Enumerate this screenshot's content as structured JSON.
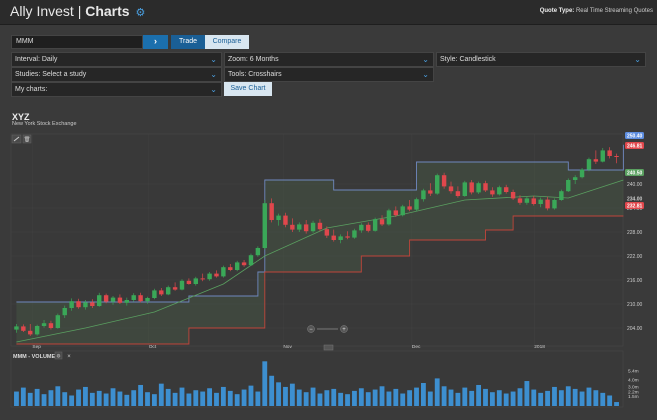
{
  "header": {
    "brand_name": "Ally Invest",
    "brand_section": "Charts",
    "quote_type_label": "Quote Type:",
    "quote_type_value": "Real Time Streaming Quotes"
  },
  "controls": {
    "symbol_value": "MMM",
    "go_label": "›",
    "trade_label": "Trade",
    "compare_label": "Compare",
    "interval": "Interval:  Daily",
    "zoom": "Zoom:  6 Months",
    "style": "Style:  Candlestick",
    "studies": "Studies:  Select a study",
    "tools": "Tools:  Crosshairs",
    "my_charts": "My charts:",
    "save_chart_label": "Save Chart"
  },
  "chart": {
    "title": "XYZ",
    "exchange": "New York Stock Exchange",
    "volume_label": "MMM - VOLUME",
    "colors": {
      "up": "#3aa858",
      "down": "#e0474c",
      "upper_band": "#6f88bf",
      "lower_band": "#c0453a",
      "mid_band": "#5aa060",
      "volume": "#3d8fd0"
    }
  },
  "chart_data": {
    "type": "candlestick",
    "xticks": [
      "Sep",
      "Oct",
      "Nov",
      "Dec",
      "2018"
    ],
    "yticks": [
      204.0,
      210.0,
      216.0,
      222.0,
      228.0,
      234.0,
      240.0
    ],
    "price_badges": [
      {
        "value": "250.40",
        "color": "#5d8de0"
      },
      {
        "value": "246.81",
        "color": "#e0474c"
      },
      {
        "value": "240.50",
        "color": "#5aa060"
      },
      {
        "value": "234.00",
        "color": ""
      },
      {
        "value": "232.81",
        "color": "#e0474c"
      }
    ],
    "ylim": [
      200,
      252
    ],
    "candles": [
      [
        203.6,
        205.0,
        202.8,
        204.4
      ],
      [
        204.4,
        204.9,
        203.0,
        203.3
      ],
      [
        203.3,
        205.0,
        202.0,
        202.4
      ],
      [
        202.4,
        204.8,
        202.1,
        204.5
      ],
      [
        204.5,
        206.0,
        204.1,
        205.2
      ],
      [
        205.2,
        205.8,
        203.6,
        204.0
      ],
      [
        204.0,
        207.6,
        203.8,
        207.2
      ],
      [
        207.2,
        209.6,
        206.5,
        209.0
      ],
      [
        209.0,
        211.4,
        208.3,
        210.7
      ],
      [
        210.7,
        211.3,
        208.8,
        209.2
      ],
      [
        209.2,
        211.0,
        208.6,
        210.4
      ],
      [
        210.4,
        211.2,
        209.0,
        209.5
      ],
      [
        209.5,
        212.8,
        209.3,
        212.2
      ],
      [
        212.2,
        212.6,
        210.2,
        210.6
      ],
      [
        210.6,
        212.0,
        209.8,
        211.6
      ],
      [
        211.6,
        212.4,
        210.0,
        210.3
      ],
      [
        210.3,
        211.6,
        209.6,
        211.0
      ],
      [
        211.0,
        212.7,
        210.6,
        212.2
      ],
      [
        212.2,
        212.8,
        210.4,
        210.7
      ],
      [
        210.7,
        211.8,
        210.1,
        211.5
      ],
      [
        211.5,
        213.8,
        211.2,
        213.4
      ],
      [
        213.4,
        214.0,
        212.0,
        212.4
      ],
      [
        212.4,
        214.6,
        212.2,
        214.2
      ],
      [
        214.2,
        215.4,
        213.3,
        213.6
      ],
      [
        213.6,
        216.2,
        213.4,
        215.8
      ],
      [
        215.8,
        216.4,
        214.8,
        215.0
      ],
      [
        215.0,
        216.8,
        214.6,
        216.4
      ],
      [
        216.4,
        217.6,
        215.7,
        216.2
      ],
      [
        216.2,
        218.0,
        215.8,
        217.6
      ],
      [
        217.6,
        218.4,
        216.6,
        216.9
      ],
      [
        216.9,
        219.6,
        216.6,
        219.2
      ],
      [
        219.2,
        220.0,
        218.2,
        218.5
      ],
      [
        218.5,
        220.8,
        218.2,
        220.4
      ],
      [
        220.4,
        221.0,
        219.3,
        219.7
      ],
      [
        219.7,
        222.6,
        219.5,
        222.2
      ],
      [
        222.2,
        224.4,
        221.8,
        224.0
      ],
      [
        224.0,
        236.0,
        223.6,
        235.2
      ],
      [
        235.2,
        236.4,
        230.4,
        231.0
      ],
      [
        231.0,
        232.6,
        229.6,
        232.1
      ],
      [
        232.1,
        232.8,
        229.2,
        229.8
      ],
      [
        229.8,
        231.4,
        228.0,
        228.6
      ],
      [
        228.6,
        230.4,
        228.0,
        229.9
      ],
      [
        229.9,
        231.0,
        227.6,
        228.2
      ],
      [
        228.2,
        230.8,
        227.8,
        230.3
      ],
      [
        230.3,
        231.2,
        228.2,
        228.7
      ],
      [
        228.7,
        229.4,
        226.5,
        227.1
      ],
      [
        227.1,
        228.6,
        225.6,
        226.0
      ],
      [
        226.0,
        227.4,
        225.2,
        226.9
      ],
      [
        226.9,
        228.2,
        226.2,
        226.6
      ],
      [
        226.6,
        228.8,
        226.3,
        228.4
      ],
      [
        228.4,
        230.2,
        227.8,
        229.8
      ],
      [
        229.8,
        230.4,
        227.9,
        228.3
      ],
      [
        228.3,
        231.6,
        228.1,
        231.2
      ],
      [
        231.2,
        232.2,
        229.5,
        229.9
      ],
      [
        229.9,
        233.8,
        229.6,
        233.4
      ],
      [
        233.4,
        234.4,
        231.8,
        232.2
      ],
      [
        232.2,
        234.8,
        231.9,
        234.4
      ],
      [
        234.4,
        236.0,
        233.2,
        233.6
      ],
      [
        233.6,
        236.6,
        233.2,
        236.2
      ],
      [
        236.2,
        238.8,
        235.6,
        238.4
      ],
      [
        238.4,
        240.2,
        237.0,
        237.6
      ],
      [
        237.6,
        242.6,
        237.3,
        242.2
      ],
      [
        242.2,
        242.8,
        238.8,
        239.4
      ],
      [
        239.4,
        240.6,
        237.6,
        238.2
      ],
      [
        238.2,
        239.4,
        236.6,
        237.0
      ],
      [
        237.0,
        240.8,
        236.8,
        240.4
      ],
      [
        240.4,
        241.0,
        237.4,
        237.9
      ],
      [
        237.9,
        240.6,
        237.5,
        240.2
      ],
      [
        240.2,
        240.8,
        238.0,
        238.4
      ],
      [
        238.4,
        239.2,
        236.8,
        237.4
      ],
      [
        237.4,
        239.6,
        237.1,
        239.2
      ],
      [
        239.2,
        239.8,
        237.6,
        238.0
      ],
      [
        238.0,
        238.6,
        236.0,
        236.4
      ],
      [
        236.4,
        237.2,
        234.8,
        235.3
      ],
      [
        235.3,
        236.8,
        234.8,
        236.4
      ],
      [
        236.4,
        237.0,
        234.6,
        235.0
      ],
      [
        235.0,
        236.6,
        234.2,
        236.1
      ],
      [
        236.1,
        236.8,
        233.4,
        233.9
      ],
      [
        233.9,
        236.4,
        233.6,
        236.0
      ],
      [
        236.0,
        238.6,
        235.8,
        238.2
      ],
      [
        238.2,
        241.4,
        238.0,
        241.0
      ],
      [
        241.0,
        242.2,
        240.0,
        241.7
      ],
      [
        241.7,
        244.0,
        241.4,
        243.6
      ],
      [
        243.6,
        246.6,
        243.2,
        246.2
      ],
      [
        246.2,
        248.4,
        245.0,
        245.6
      ],
      [
        245.6,
        249.0,
        245.4,
        248.4
      ],
      [
        248.4,
        249.2,
        246.4,
        247.0
      ],
      [
        247.0,
        247.6,
        245.2,
        246.8
      ]
    ],
    "upper_band": [
      [
        0,
        210.5
      ],
      [
        25,
        212.0
      ],
      [
        35,
        218.0
      ],
      [
        36,
        241.0
      ],
      [
        43,
        241.0
      ],
      [
        46,
        238.5
      ],
      [
        56,
        238.5
      ],
      [
        58,
        245.5
      ],
      [
        79,
        245.5
      ],
      [
        80,
        243.5
      ],
      [
        88,
        249.8
      ]
    ],
    "mid_band": [
      [
        0,
        200.5
      ],
      [
        10,
        204.0
      ],
      [
        20,
        208.0
      ],
      [
        30,
        215.0
      ],
      [
        36,
        222.0
      ],
      [
        45,
        229.0
      ],
      [
        55,
        232.0
      ],
      [
        65,
        236.0
      ],
      [
        75,
        237.0
      ],
      [
        80,
        236.5
      ],
      [
        88,
        241.0
      ]
    ],
    "lower_band": [
      [
        0,
        200.0
      ],
      [
        24,
        200.0
      ],
      [
        25,
        204.0
      ],
      [
        35,
        204.0
      ],
      [
        36,
        218.0
      ],
      [
        49,
        218.0
      ],
      [
        50,
        222.0
      ],
      [
        56,
        222.0
      ],
      [
        57,
        226.0
      ],
      [
        67,
        226.0
      ],
      [
        68,
        228.5
      ],
      [
        71,
        228.5
      ],
      [
        72,
        232.0
      ],
      [
        88,
        232.0
      ]
    ],
    "volume_yticks": [
      "5.4m",
      "4.0m",
      "3.0m",
      "2.2m",
      "1.5m"
    ],
    "volume": [
      2.2,
      2.8,
      2.0,
      2.6,
      1.8,
      2.4,
      3.0,
      2.1,
      1.6,
      2.5,
      2.9,
      2.0,
      2.3,
      1.9,
      2.7,
      2.2,
      1.7,
      2.4,
      3.2,
      2.1,
      1.8,
      3.4,
      2.6,
      2.0,
      2.8,
      1.9,
      2.4,
      2.2,
      2.7,
      2.0,
      2.9,
      2.3,
      1.8,
      2.5,
      3.1,
      2.2,
      6.8,
      4.6,
      3.6,
      2.9,
      3.4,
      2.5,
      2.1,
      2.8,
      1.9,
      2.4,
      2.6,
      2.0,
      1.8,
      2.3,
      2.7,
      2.1,
      2.5,
      3.0,
      2.2,
      2.6,
      1.9,
      2.4,
      2.8,
      3.5,
      2.2,
      4.2,
      3.0,
      2.5,
      2.0,
      2.8,
      2.3,
      3.2,
      2.6,
      2.1,
      2.4,
      1.9,
      2.2,
      2.7,
      3.8,
      2.5,
      2.0,
      2.3,
      2.9,
      2.4,
      3.0,
      2.6,
      2.2,
      2.8,
      2.4,
      2.0,
      1.6,
      0.6
    ]
  }
}
